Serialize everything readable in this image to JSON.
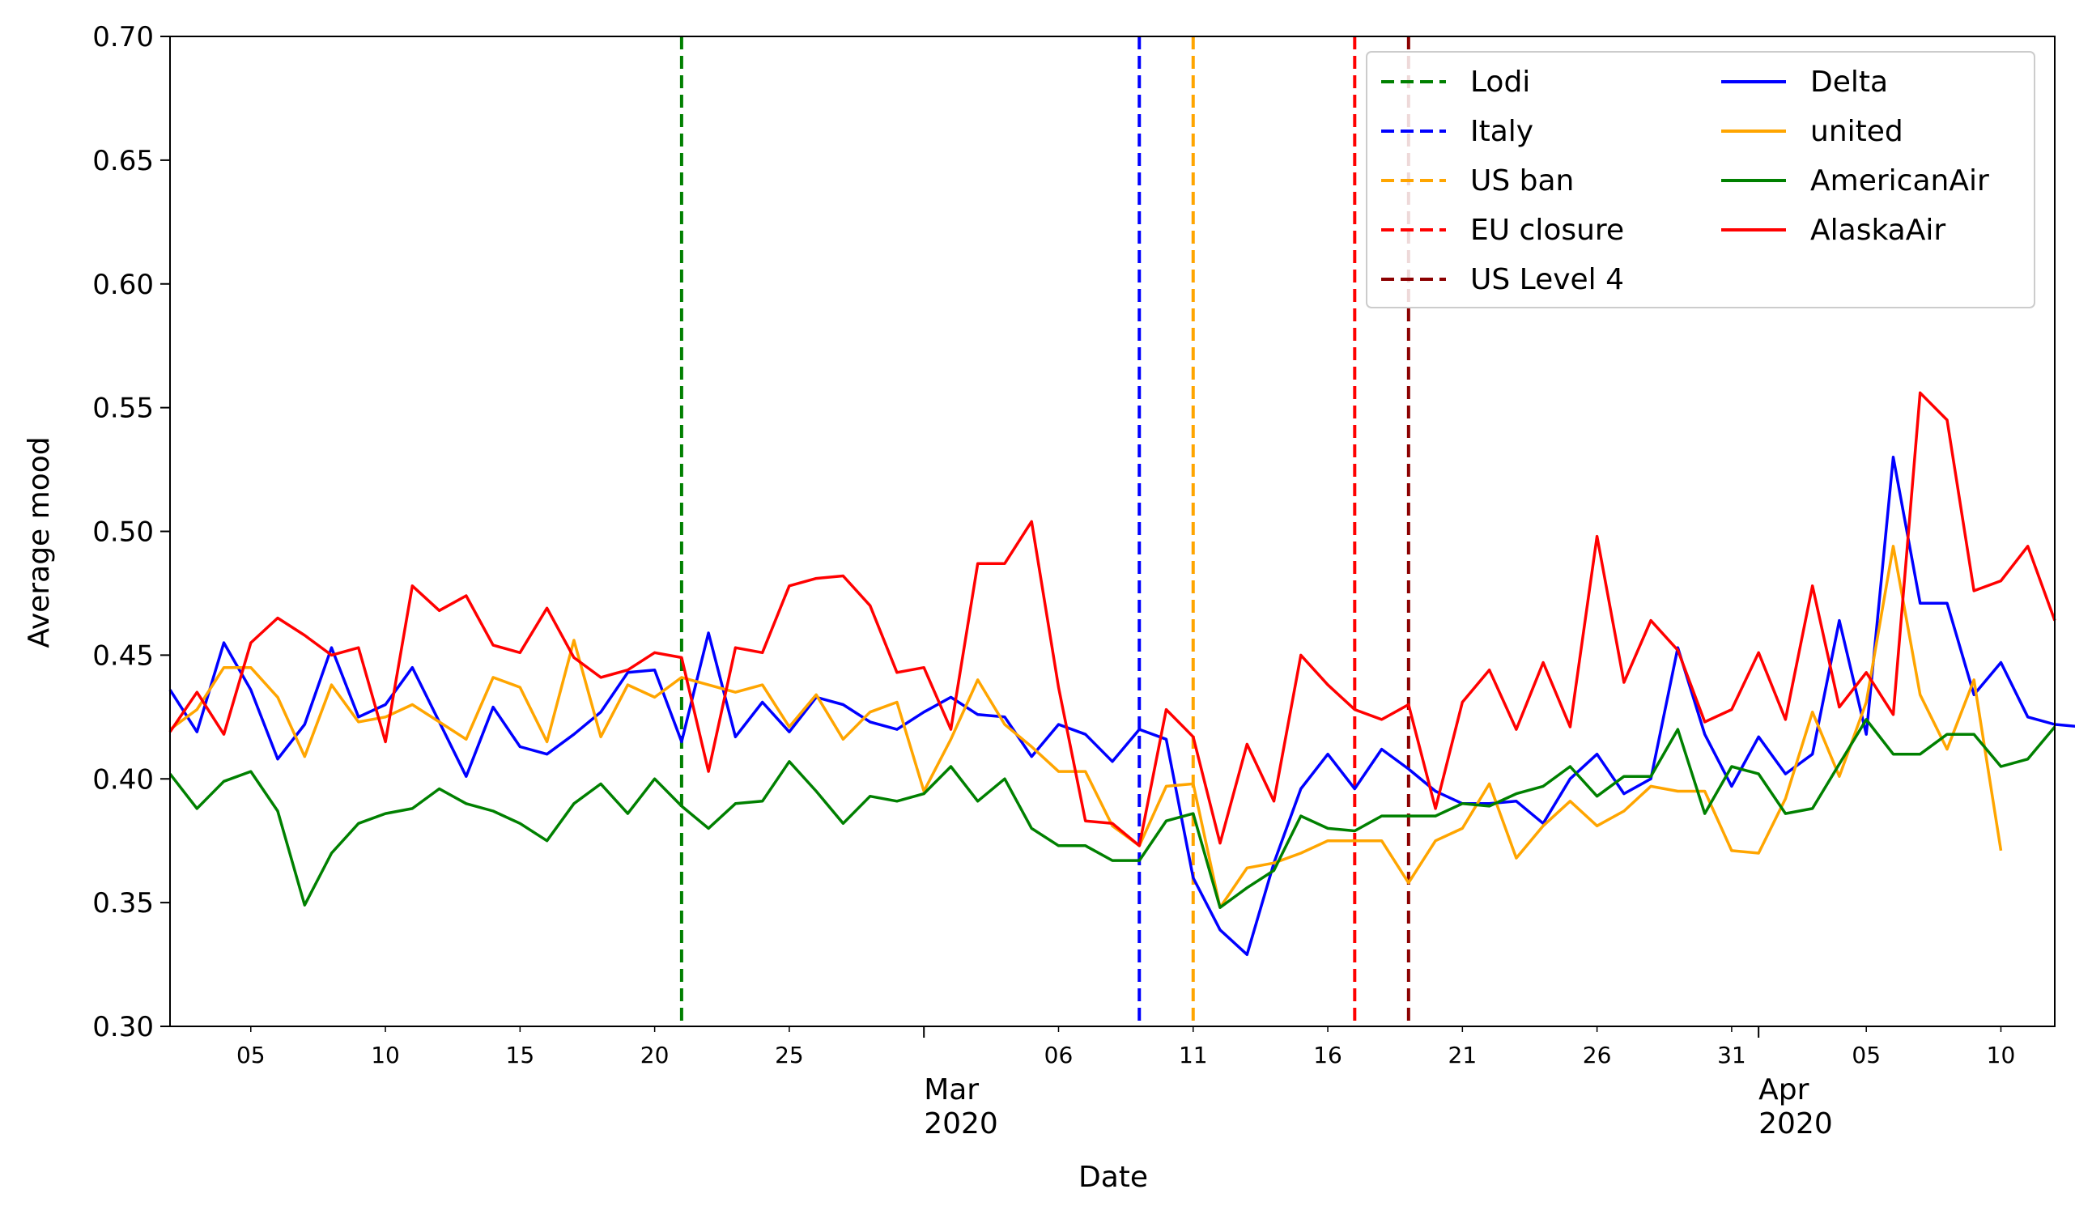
{
  "chart_data": {
    "type": "line",
    "title": "",
    "xlabel": "Date",
    "ylabel": "Average mood",
    "ylim": [
      0.3,
      0.7
    ],
    "yticks": [
      "0.30",
      "0.35",
      "0.40",
      "0.45",
      "0.50",
      "0.55",
      "0.60",
      "0.65",
      "0.70"
    ],
    "x_start_date": "2020-02-02",
    "x_end_date": "2020-04-12",
    "xticks_minor": [
      {
        "date": "2020-02-05",
        "label": "05"
      },
      {
        "date": "2020-02-10",
        "label": "10"
      },
      {
        "date": "2020-02-15",
        "label": "15"
      },
      {
        "date": "2020-02-20",
        "label": "20"
      },
      {
        "date": "2020-02-25",
        "label": "25"
      },
      {
        "date": "2020-03-06",
        "label": "06"
      },
      {
        "date": "2020-03-11",
        "label": "11"
      },
      {
        "date": "2020-03-16",
        "label": "16"
      },
      {
        "date": "2020-03-21",
        "label": "21"
      },
      {
        "date": "2020-03-26",
        "label": "26"
      },
      {
        "date": "2020-03-31",
        "label": "31"
      },
      {
        "date": "2020-04-05",
        "label": "05"
      },
      {
        "date": "2020-04-10",
        "label": "10"
      }
    ],
    "xticks_major": [
      {
        "date": "2020-03-01",
        "month": "Mar",
        "year": "2020"
      },
      {
        "date": "2020-04-01",
        "month": "Apr",
        "year": "2020"
      }
    ],
    "events": [
      {
        "name": "Lodi",
        "date": "2020-02-21",
        "color": "#008000"
      },
      {
        "name": "Italy",
        "date": "2020-03-09",
        "color": "#0000ff"
      },
      {
        "name": "US ban",
        "date": "2020-03-11",
        "color": "#ffa500"
      },
      {
        "name": "EU closure",
        "date": "2020-03-17",
        "color": "#ff0000"
      },
      {
        "name": "US Level 4",
        "date": "2020-03-19",
        "color": "#8b0000"
      }
    ],
    "series": [
      {
        "name": "Delta",
        "color": "#0000ff",
        "start_date": "2020-02-02",
        "values": [
          0.436,
          0.419,
          0.455,
          0.436,
          0.408,
          0.422,
          0.453,
          0.425,
          0.43,
          0.445,
          0.423,
          0.401,
          0.429,
          0.413,
          0.41,
          0.418,
          0.427,
          0.443,
          0.444,
          0.415,
          0.459,
          0.417,
          0.431,
          0.419,
          0.433,
          0.43,
          0.423,
          0.42,
          0.427,
          0.433,
          0.426,
          0.425,
          0.409,
          0.422,
          0.418,
          0.407,
          0.42,
          0.416,
          0.36,
          0.339,
          0.329,
          0.366,
          0.396,
          0.41,
          0.396,
          0.412,
          0.404,
          0.395,
          0.39,
          0.39,
          0.391,
          0.382,
          0.4,
          0.41,
          0.394,
          0.4,
          0.453,
          0.418,
          0.397,
          0.417,
          0.402,
          0.41,
          0.464,
          0.418,
          0.53,
          0.471,
          0.471,
          0.434,
          0.447,
          0.425,
          0.422,
          0.421
        ]
      },
      {
        "name": "united",
        "color": "#ffa500",
        "start_date": "2020-02-02",
        "values": [
          0.42,
          0.428,
          0.445,
          0.445,
          0.433,
          0.409,
          0.438,
          0.423,
          0.425,
          0.43,
          0.423,
          0.416,
          0.441,
          0.437,
          0.415,
          0.456,
          0.417,
          0.438,
          0.433,
          0.441,
          0.438,
          0.435,
          0.438,
          0.421,
          0.434,
          0.416,
          0.427,
          0.431,
          0.395,
          0.416,
          0.44,
          0.422,
          0.413,
          0.403,
          0.403,
          0.381,
          0.373,
          0.397,
          0.398,
          0.348,
          0.364,
          0.366,
          0.37,
          0.375,
          0.375,
          0.375,
          0.358,
          0.375,
          0.38,
          0.398,
          0.368,
          0.381,
          0.391,
          0.381,
          0.387,
          0.397,
          0.395,
          0.395,
          0.371,
          0.37,
          0.392,
          0.427,
          0.401,
          0.431,
          0.494,
          0.434,
          0.412,
          0.44,
          0.371
        ]
      },
      {
        "name": "AmericanAir",
        "color": "#008000",
        "start_date": "2020-02-02",
        "values": [
          0.402,
          0.388,
          0.399,
          0.403,
          0.387,
          0.349,
          0.37,
          0.382,
          0.386,
          0.388,
          0.396,
          0.39,
          0.387,
          0.382,
          0.375,
          0.39,
          0.398,
          0.386,
          0.4,
          0.389,
          0.38,
          0.39,
          0.391,
          0.407,
          0.395,
          0.382,
          0.393,
          0.391,
          0.394,
          0.405,
          0.391,
          0.4,
          0.38,
          0.373,
          0.373,
          0.367,
          0.367,
          0.383,
          0.386,
          0.348,
          0.356,
          0.363,
          0.385,
          0.38,
          0.379,
          0.385,
          0.385,
          0.385,
          0.39,
          0.389,
          0.394,
          0.397,
          0.405,
          0.393,
          0.401,
          0.401,
          0.42,
          0.386,
          0.405,
          0.402,
          0.386,
          0.388,
          0.406,
          0.424,
          0.41,
          0.41,
          0.418,
          0.418,
          0.405,
          0.408,
          0.421
        ]
      },
      {
        "name": "AlaskaAir",
        "color": "#ff0000",
        "start_date": "2020-02-02",
        "values": [
          0.419,
          0.435,
          0.418,
          0.455,
          0.465,
          0.458,
          0.45,
          0.453,
          0.415,
          0.478,
          0.468,
          0.474,
          0.454,
          0.451,
          0.469,
          0.449,
          0.441,
          0.444,
          0.451,
          0.449,
          0.403,
          0.453,
          0.451,
          0.478,
          0.481,
          0.482,
          0.47,
          0.443,
          0.445,
          0.42,
          0.487,
          0.487,
          0.504,
          0.437,
          0.383,
          0.382,
          0.373,
          0.428,
          0.417,
          0.374,
          0.414,
          0.391,
          0.45,
          0.438,
          0.428,
          0.424,
          0.43,
          0.388,
          0.431,
          0.444,
          0.42,
          0.447,
          0.421,
          0.498,
          0.439,
          0.464,
          0.452,
          0.423,
          0.428,
          0.451,
          0.424,
          0.478,
          0.429,
          0.443,
          0.426,
          0.556,
          0.545,
          0.476,
          0.48,
          0.494,
          0.464
        ]
      }
    ],
    "legend": {
      "placement": "top-right",
      "columns": [
        [
          "Lodi",
          "Italy",
          "US ban",
          "EU closure",
          "US Level 4"
        ],
        [
          "Delta",
          "united",
          "AmericanAir",
          "AlaskaAir"
        ]
      ]
    }
  }
}
